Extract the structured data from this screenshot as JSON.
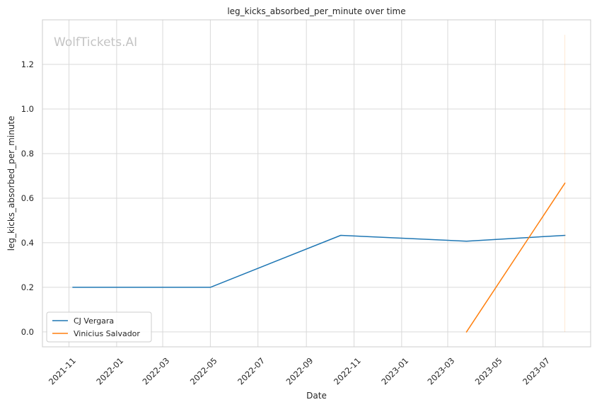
{
  "watermark": "WolfTickets.AI",
  "chart_data": {
    "type": "line",
    "title": "leg_kicks_absorbed_per_minute over time",
    "xlabel": "Date",
    "ylabel": "leg_kicks_absorbed_per_minute",
    "x_range": [
      "2021-09-28",
      "2023-08-31"
    ],
    "ylim": [
      -0.067,
      1.4
    ],
    "x_ticks": [
      "2021-11",
      "2022-01",
      "2022-03",
      "2022-05",
      "2022-07",
      "2022-09",
      "2022-11",
      "2023-01",
      "2023-03",
      "2023-05",
      "2023-07"
    ],
    "y_ticks": [
      0.0,
      0.2,
      0.4,
      0.6,
      0.8,
      1.0,
      1.2
    ],
    "y_tick_labels": [
      "0.0",
      "0.2",
      "0.4",
      "0.6",
      "0.8",
      "1.0",
      "1.2"
    ],
    "grid": true,
    "legend_position": "lower-left",
    "series": [
      {
        "name": "CJ Vergara",
        "color": "#1f77b4",
        "points": [
          {
            "x": "2021-11-06",
            "y": 0.2
          },
          {
            "x": "2022-05-01",
            "y": 0.2
          },
          {
            "x": "2022-10-15",
            "y": 0.433
          },
          {
            "x": "2023-03-25",
            "y": 0.407
          },
          {
            "x": "2023-07-29",
            "y": 0.433
          }
        ]
      },
      {
        "name": "Vinicius Salvador",
        "color": "#ff7f0e",
        "points": [
          {
            "x": "2023-03-25",
            "y": 0.0
          },
          {
            "x": "2023-07-29",
            "y": 0.667
          }
        ],
        "error_bar": {
          "x": "2023-07-29",
          "low": 0.0,
          "high": 1.333
        }
      }
    ]
  }
}
